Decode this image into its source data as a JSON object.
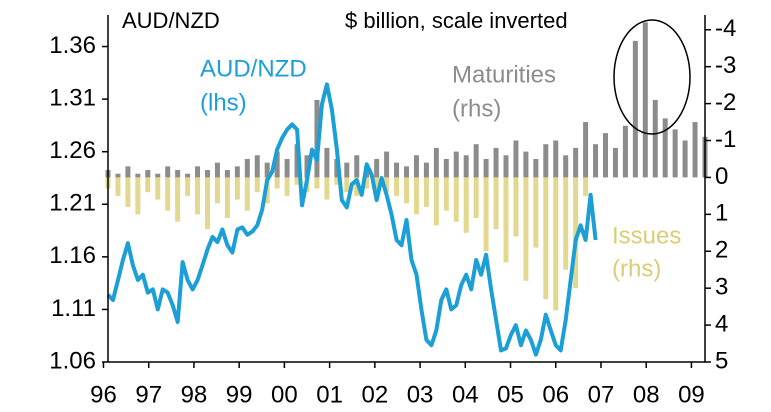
{
  "chart_data": {
    "type": "bar_line_dual",
    "title": "AUD/NZD",
    "y2_title": "$ billion, scale inverted",
    "xlim": [
      1996.1,
      2009.3
    ],
    "xticks": [
      {
        "value": 1996,
        "label": "96"
      },
      {
        "value": 1997,
        "label": "97"
      },
      {
        "value": 1998,
        "label": "98"
      },
      {
        "value": 1999,
        "label": "99"
      },
      {
        "value": 2000,
        "label": "00"
      },
      {
        "value": 2001,
        "label": "01"
      },
      {
        "value": 2002,
        "label": "02"
      },
      {
        "value": 2003,
        "label": "03"
      },
      {
        "value": 2004,
        "label": "04"
      },
      {
        "value": 2005,
        "label": "05"
      },
      {
        "value": 2006,
        "label": "06"
      },
      {
        "value": 2007,
        "label": "07"
      },
      {
        "value": 2008,
        "label": "08"
      },
      {
        "value": 2009,
        "label": "09"
      }
    ],
    "ylim": [
      1.06,
      1.39
    ],
    "yticks": [
      1.06,
      1.11,
      1.16,
      1.21,
      1.26,
      1.31,
      1.36
    ],
    "y2lim": [
      5,
      -4.4
    ],
    "y2ticks": [
      -4,
      -3,
      -2,
      -1,
      0,
      1,
      2,
      3,
      4,
      5
    ],
    "bar_x": [
      1996.1,
      1996.32,
      1996.54,
      1996.76,
      1996.98,
      1997.2,
      1997.42,
      1997.64,
      1997.86,
      1998.08,
      1998.3,
      1998.52,
      1998.74,
      1998.96,
      1999.18,
      1999.4,
      1999.62,
      1999.84,
      2000.06,
      2000.28,
      2000.5,
      2000.72,
      2000.94,
      2001.16,
      2001.38,
      2001.6,
      2001.82,
      2002.04,
      2002.26,
      2002.48,
      2002.7,
      2002.92,
      2003.14,
      2003.36,
      2003.58,
      2003.8,
      2004.02,
      2004.24,
      2004.46,
      2004.68,
      2004.9,
      2005.12,
      2005.34,
      2005.56,
      2005.78,
      2006.0,
      2006.22,
      2006.44,
      2006.66,
      2006.88,
      2007.1,
      2007.32,
      2007.54,
      2007.76,
      2007.98,
      2008.2,
      2008.42,
      2008.64,
      2008.86,
      2009.08,
      2009.3
    ],
    "series": [
      {
        "name": "Maturities",
        "axis_note": "(rhs)",
        "axis": "y2",
        "color": "#8c8c8c",
        "values": [
          -0.2,
          -0.1,
          -0.3,
          -0.1,
          -0.2,
          -0.1,
          -0.3,
          -0.2,
          -0.1,
          -0.3,
          -0.2,
          -0.4,
          -0.2,
          -0.3,
          -0.5,
          -0.6,
          -0.4,
          -0.7,
          -0.5,
          -0.9,
          -0.6,
          -2.1,
          -0.8,
          -0.5,
          -0.4,
          -0.6,
          -0.3,
          -0.5,
          -0.7,
          -0.4,
          -0.3,
          -0.6,
          -0.4,
          -0.8,
          -0.5,
          -0.7,
          -0.6,
          -0.9,
          -0.5,
          -0.8,
          -0.6,
          -1.0,
          -0.7,
          -0.5,
          -0.9,
          -1.0,
          -0.6,
          -0.8,
          -1.5,
          -0.9,
          -1.2,
          -0.8,
          -1.4,
          -3.7,
          -4.2,
          -2.1,
          -1.6,
          -1.3,
          -1.0,
          -1.5,
          -1.1
        ]
      },
      {
        "name": "Issues",
        "axis_note": "(rhs)",
        "axis": "y2",
        "color": "#e2d890",
        "values": [
          0.3,
          0.5,
          0.8,
          1.0,
          0.4,
          0.6,
          0.9,
          1.2,
          0.5,
          1.0,
          1.4,
          0.7,
          1.1,
          0.6,
          0.9,
          0.4,
          0.7,
          0.3,
          0.5,
          0.2,
          0.4,
          0.3,
          0.6,
          0.2,
          0.4,
          0.5,
          0.3,
          0.6,
          0.4,
          0.5,
          0.7,
          1.0,
          0.8,
          1.3,
          0.9,
          1.2,
          1.5,
          1.1,
          2.0,
          1.4,
          2.3,
          1.6,
          2.8,
          1.9,
          3.3,
          3.6,
          2.5,
          3.0,
          0.5,
          0,
          0,
          0,
          0,
          0,
          0,
          0,
          0,
          0,
          0,
          0,
          0
        ]
      },
      {
        "name": "AUD/NZD",
        "axis_note": "(lhs)",
        "axis": "y",
        "color": "#1b9fd6",
        "x": [
          1996.1,
          1996.21,
          1996.32,
          1996.43,
          1996.54,
          1996.65,
          1996.76,
          1996.87,
          1996.98,
          1997.09,
          1997.2,
          1997.31,
          1997.42,
          1997.53,
          1997.64,
          1997.75,
          1997.86,
          1997.97,
          1998.08,
          1998.19,
          1998.3,
          1998.41,
          1998.52,
          1998.63,
          1998.74,
          1998.85,
          1998.96,
          1999.07,
          1999.18,
          1999.29,
          1999.4,
          1999.51,
          1999.62,
          1999.73,
          1999.84,
          1999.95,
          2000.06,
          2000.17,
          2000.28,
          2000.39,
          2000.5,
          2000.61,
          2000.72,
          2000.83,
          2000.94,
          2001.05,
          2001.16,
          2001.27,
          2001.38,
          2001.49,
          2001.6,
          2001.71,
          2001.82,
          2001.93,
          2002.04,
          2002.15,
          2002.26,
          2002.37,
          2002.48,
          2002.59,
          2002.7,
          2002.81,
          2002.92,
          2003.03,
          2003.14,
          2003.25,
          2003.36,
          2003.47,
          2003.58,
          2003.69,
          2003.8,
          2003.91,
          2004.02,
          2004.13,
          2004.24,
          2004.35,
          2004.46,
          2004.57,
          2004.68,
          2004.79,
          2004.9,
          2005.01,
          2005.12,
          2005.23,
          2005.34,
          2005.45,
          2005.56,
          2005.67,
          2005.78,
          2005.89,
          2006.0,
          2006.11,
          2006.22,
          2006.33,
          2006.44,
          2006.55,
          2006.66,
          2006.77,
          2006.88
        ],
        "values": [
          1.124,
          1.119,
          1.138,
          1.157,
          1.173,
          1.152,
          1.138,
          1.143,
          1.126,
          1.129,
          1.11,
          1.129,
          1.126,
          1.114,
          1.098,
          1.155,
          1.138,
          1.129,
          1.138,
          1.152,
          1.167,
          1.179,
          1.174,
          1.186,
          1.171,
          1.164,
          1.186,
          1.188,
          1.181,
          1.184,
          1.19,
          1.205,
          1.233,
          1.241,
          1.262,
          1.273,
          1.281,
          1.286,
          1.281,
          1.209,
          1.233,
          1.262,
          1.252,
          1.305,
          1.324,
          1.3,
          1.262,
          1.214,
          1.207,
          1.229,
          1.233,
          1.219,
          1.248,
          1.238,
          1.214,
          1.235,
          1.219,
          1.2,
          1.176,
          1.171,
          1.195,
          1.157,
          1.143,
          1.11,
          1.081,
          1.076,
          1.09,
          1.119,
          1.129,
          1.11,
          1.114,
          1.133,
          1.143,
          1.129,
          1.157,
          1.143,
          1.162,
          1.129,
          1.1,
          1.071,
          1.073,
          1.086,
          1.095,
          1.076,
          1.09,
          1.081,
          1.067,
          1.081,
          1.105,
          1.09,
          1.076,
          1.071,
          1.1,
          1.138,
          1.176,
          1.19,
          1.176,
          1.219,
          1.176
        ]
      }
    ]
  }
}
